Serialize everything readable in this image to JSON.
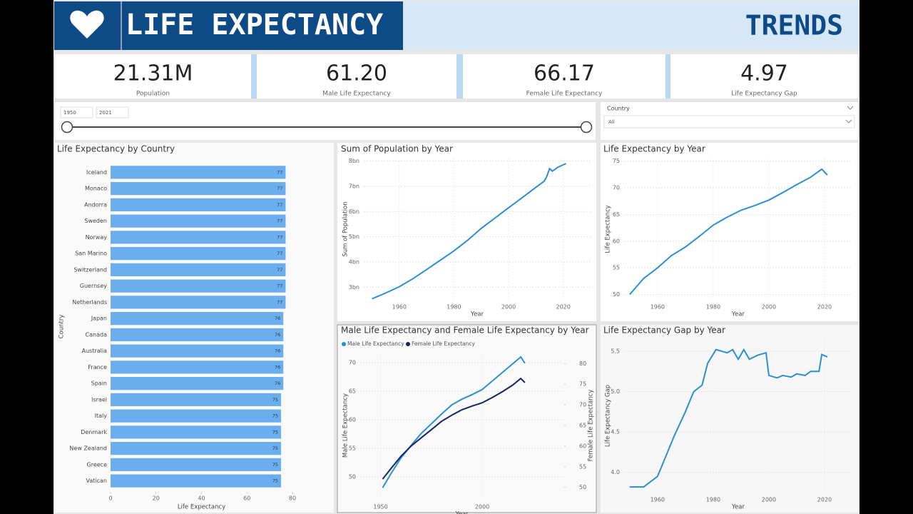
{
  "header": {
    "title": "LIFE EXPECTANCY",
    "subtitle": "TRENDS"
  },
  "kpis": [
    {
      "value": "21.31M",
      "label": "Population"
    },
    {
      "value": "61.20",
      "label": "Male Life Expectancy"
    },
    {
      "value": "66.17",
      "label": "Female Life Expectancy"
    },
    {
      "value": "4.97",
      "label": "Life Expectancy Gap"
    }
  ],
  "year_slicer": {
    "start": "1950",
    "end": "2021"
  },
  "country_filter": {
    "label": "Country",
    "value": "All"
  },
  "chart_data": [
    {
      "type": "bar",
      "horizontal": true,
      "title": "Life Expectancy by Country",
      "x_label": "Life Expectancy",
      "y_label": "Country",
      "categories": [
        "Iceland",
        "Monaco",
        "Andorra",
        "Sweden",
        "Norway",
        "San Marino",
        "Switzerland",
        "Guernsey",
        "Netherlands",
        "Japan",
        "Canada",
        "Australia",
        "France",
        "Spain",
        "Israel",
        "Italy",
        "Denmark",
        "New Zealand",
        "Greece",
        "Vatican"
      ],
      "values": [
        77,
        77,
        77,
        77,
        77,
        77,
        77,
        77,
        77,
        76,
        76,
        76,
        76,
        76,
        75,
        75,
        75,
        75,
        75,
        75
      ],
      "color": "#6aaef0",
      "xlim": [
        0,
        80
      ],
      "xticks": [
        0,
        20,
        40,
        60,
        80
      ]
    },
    {
      "type": "line",
      "title": "Sum of Population by Year",
      "x_label": "Year",
      "y_label": "Sum of Population",
      "color": "#2b8fd2",
      "grid": true,
      "x": [
        1950,
        1955,
        1960,
        1965,
        1970,
        1975,
        1980,
        1985,
        1990,
        1995,
        2000,
        2005,
        2010,
        2013,
        2014,
        2015,
        2016,
        2018,
        2021
      ],
      "values": [
        2540000000,
        2770000000,
        3020000000,
        3340000000,
        3700000000,
        4070000000,
        4440000000,
        4860000000,
        5330000000,
        5740000000,
        6150000000,
        6550000000,
        6960000000,
        7200000000,
        7400000000,
        7700000000,
        7600000000,
        7750000000,
        7900000000
      ],
      "xlim": [
        1947,
        2030
      ],
      "xticks": [
        1960,
        1980,
        2000,
        2020
      ],
      "ylim": [
        2500000000,
        8100000000
      ],
      "yticks": [
        {
          "value": 3000000000,
          "label": "3bn"
        },
        {
          "value": 4000000000,
          "label": "4bn"
        },
        {
          "value": 5000000000,
          "label": "5bn"
        },
        {
          "value": 6000000000,
          "label": "6bn"
        },
        {
          "value": 7000000000,
          "label": "7bn"
        },
        {
          "value": 8000000000,
          "label": "8bn"
        }
      ]
    },
    {
      "type": "line",
      "title": "Life Expectancy by Year",
      "x_label": "Year",
      "y_label": "Life Expectancy",
      "color": "#2b8fd2",
      "grid": true,
      "x": [
        1950,
        1955,
        1960,
        1965,
        1970,
        1975,
        1980,
        1985,
        1990,
        1995,
        2000,
        2005,
        2010,
        2015,
        2019,
        2021
      ],
      "values": [
        50,
        53,
        55,
        57.3,
        58.9,
        60.9,
        63,
        64.5,
        65.8,
        66.7,
        67.7,
        69.1,
        70.6,
        72,
        73.5,
        72.4
      ],
      "xlim": [
        1948,
        2030
      ],
      "xticks": [
        1960,
        1980,
        2000,
        2020
      ],
      "ylim": [
        49,
        75.5
      ],
      "yticks": [
        50,
        55,
        60,
        65,
        70,
        75
      ]
    },
    {
      "type": "line",
      "title": "Male Life Expectancy and Female Life Expectancy by Year",
      "x_label": "Year",
      "y_label": "Male Life Expectancy",
      "y2_label": "Female Life Expectancy",
      "grid": true,
      "x": [
        1951,
        1955,
        1960,
        1965,
        1970,
        1975,
        1980,
        1985,
        1990,
        1995,
        2000,
        2005,
        2010,
        2015,
        2019,
        2021
      ],
      "series": [
        {
          "name": "Male Life Expectancy",
          "color": "#2b8fd2",
          "values": [
            48.1,
            50.5,
            53.3,
            55.5,
            57.6,
            59.3,
            61,
            62.6,
            63.6,
            64.4,
            65.3,
            66.8,
            68.3,
            69.8,
            71,
            69.9
          ]
        },
        {
          "name": "Female Life Expectancy",
          "color": "#12246b",
          "axis": "y2",
          "values": [
            52,
            54.5,
            57.5,
            60,
            62,
            64,
            66,
            67.5,
            68.8,
            69.7,
            70.5,
            71.8,
            73.2,
            74.8,
            76.4,
            75.4
          ]
        }
      ],
      "xlim": [
        1940,
        2040
      ],
      "xticks": [
        1950,
        2000
      ],
      "ylim": [
        46,
        72
      ],
      "yticks": [
        50,
        55,
        60,
        65,
        70
      ],
      "y2lim": [
        47,
        83
      ],
      "y2ticks": [
        50,
        55,
        60,
        65,
        70,
        75,
        80
      ]
    },
    {
      "type": "line",
      "title": "Life Expectancy Gap by Year",
      "x_label": "Year",
      "y_label": "Life Expectancy Gap",
      "color": "#2b8fd2",
      "grid": true,
      "x": [
        1950,
        1955,
        1960,
        1963,
        1966,
        1970,
        1973,
        1976,
        1978,
        1981,
        1985,
        1987,
        1989,
        1991,
        1993,
        1996,
        1999,
        2000,
        2003,
        2005,
        2008,
        2010,
        2013,
        2015,
        2018,
        2019,
        2021
      ],
      "values": [
        3.82,
        3.82,
        3.95,
        4.2,
        4.45,
        4.75,
        5,
        5.08,
        5.35,
        5.52,
        5.48,
        5.52,
        5.4,
        5.52,
        5.4,
        5.45,
        5.48,
        5.2,
        5.17,
        5.2,
        5.18,
        5.22,
        5.2,
        5.25,
        5.25,
        5.46,
        5.43
      ],
      "xlim": [
        1948,
        2030
      ],
      "xticks": [
        1960,
        1980,
        2000,
        2020
      ],
      "ylim": [
        3.75,
        5.65
      ],
      "yticks": [
        {
          "value": 4,
          "label": "4.0"
        },
        {
          "value": 4.5,
          "label": "4.5"
        },
        {
          "value": 5,
          "label": "5.0"
        },
        {
          "value": 5.5,
          "label": "5.5"
        }
      ]
    }
  ]
}
